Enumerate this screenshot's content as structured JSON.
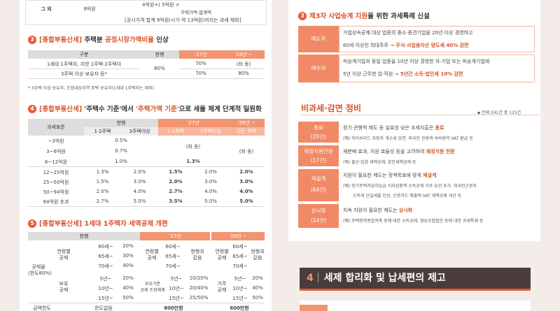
{
  "left": {
    "top_row": {
      "label": "그 외",
      "value": "9억원",
      "formula": "4억원+( 5억원 ×",
      "formula_sub": "주택가액 합계액",
      "note": "[공시가격 합계 9억원(시가 약 13억원)까지는 과세 제외]"
    },
    "s3": {
      "num": "3",
      "tag": "[종합부동산세]",
      "t1": "주택분 ",
      "t2": "공정시장가액비율",
      "t3": " 인상",
      "h": [
        "구분",
        "현행",
        "'27년",
        "'28년 ~"
      ],
      "r1": [
        "1세대 1주택자, 지방 1주택·2주택자",
        "70%",
        "(좌 동)"
      ],
      "r2": [
        "3주택 이상 보유자 등*",
        "70%",
        "80%"
      ],
      "cur": "60%",
      "note": "* 3주택 이상 보유자, 조정대상지역 주택 보유자(1세대 1주택자는 제외)"
    },
    "s4": {
      "num": "4",
      "tag": "[종합부동산세]",
      "t1": "'주택수 기준'",
      "t2": "에서 ",
      "t3": "'주택가액 기준'",
      "t4": "으로 세율 체계 단계적 일원화",
      "h_base": "과세표준",
      "h_cur": "현행",
      "h27": "'27년",
      "h28": "'28년 ~",
      "sub": [
        "1·2주택",
        "3주택이상",
        "1·2주택",
        "3주택이상",
        "모든 주택"
      ],
      "rows": [
        {
          "b": "~3억원",
          "c": "0.5%"
        },
        {
          "b": "3~6억원",
          "c": "0.7%"
        },
        {
          "b": "6~12억원",
          "c": "1.0%",
          "y": "1.3%"
        },
        {
          "b": "12~25억원",
          "c1": "1.3%",
          "c2": "2.0%",
          "y1": "1.5%",
          "y2": "2.0%",
          "z": "2.0%"
        },
        {
          "b": "25~50억원",
          "c1": "1.5%",
          "c2": "3.0%",
          "y1": "2.0%",
          "y2": "3.0%",
          "z": "3.0%"
        },
        {
          "b": "50~94억원",
          "c1": "2.0%",
          "c2": "4.0%",
          "y1": "2.7%",
          "y2": "4.0%",
          "z": "4.0%"
        },
        {
          "b": "94억원 초과",
          "c1": "2.7%",
          "c2": "5.0%",
          "y1": "3.5%",
          "y2": "5.0%",
          "z": "5.0%"
        }
      ],
      "same": "(좌 동)"
    },
    "s5": {
      "num": "5",
      "tag": "[종합부동산세]",
      "t1": "1세대 1주택자 세액공제 개편",
      "h": [
        "현행",
        "'27년",
        "'28년 ~"
      ],
      "rate_label": "공제율\n(한도80%)",
      "age": "연령별\n공제",
      "hold": "보유\n공제",
      "age_rows": [
        [
          "60세~",
          "20%"
        ],
        [
          "65세~",
          "30%"
        ],
        [
          "70세~",
          "40%"
        ]
      ],
      "hold_rows": [
        [
          "5년~",
          "20%"
        ],
        [
          "10년~",
          "40%"
        ],
        [
          "15년~",
          "50%"
        ]
      ],
      "c27a": "연령별\n공제",
      "c27b": "현행과\n같음",
      "c27age": [
        "60세~",
        "65세~",
        "70세~"
      ],
      "c27hold": "보유기준\n공제 조정체계",
      "c27h2": [
        "5년~",
        "10년~",
        "15년~"
      ],
      "c27h3": [
        "10/20%",
        "20/40%",
        "25/50%"
      ],
      "c28a": "연령별\n공제",
      "c28b": "현행과\n같음",
      "c28age": [
        "60세~",
        "65세~",
        "70세~"
      ],
      "c28hold": "거주\n공제",
      "c28h2": [
        "5년~",
        "10년~",
        "15년~"
      ],
      "c28h3": [
        "20%",
        "40%",
        "50%"
      ],
      "limit_label": "금액한도",
      "limit": [
        "한도없음",
        "800만원",
        "600만원"
      ]
    }
  },
  "right": {
    "s3": {
      "num": "3",
      "t1": "제3자 사업승계 지원",
      "t2": "을 위한 과세특례 신설",
      "seller": "매도자",
      "s1": "가업상속공제 대상 업종의 중소·중견기업을 20년 이상 경영하고",
      "s2a": "60세 이상인 최대주주 ",
      "s2b": "→ 주식·사업용자산 양도세 40% 감면",
      "buyer": "매수자",
      "b1": "피승계기업과 동일 업종을 10년 이상 경영한 자·기업 또는 피승계기업에",
      "b2a": "5년 이상 근무한 임·직원 ",
      "b2b": "→ 5년간 소득·법인세 10% 감면"
    },
    "sx": {
      "title": "비과세·감면 정비",
      "total": "▪ 전체 241건 중 115건",
      "items": [
        {
          "k": "종료",
          "n": "(20건)",
          "d1a": "장기·관행적 제도 등 실효성 낮은 조세지출은 ",
          "d1b": "종료",
          "d2": "(예) 하이브리드 자동차 개소세 감면, 외국인 관광객 숙박용역 VAT 환급 등"
        },
        {
          "k": "재정지원전환",
          "n": "(17건)",
          "d1a": "재분배 효과, 지원 효율성 등을 고려하여 ",
          "d1b": "재정지원 전환",
          "d2": "(예) 출산·입양 세액공제, 혼인세액공제 등"
        },
        {
          "k": "재설계",
          "n": "(64건)",
          "d1a": "지원이 필요한 제도는 정책목표에 맞게 ",
          "d1b": "재설계",
          "d2": "(예) 장기주택저당차입금 이자상환액 소득공제 거주 요건 추가, 외국인근로자",
          "d3": "소득세 단일세율 인상, 신용카드 매출액 VAT 세액공제 개선 등"
        },
        {
          "k": "상시화",
          "n": "(14건)",
          "d1a": "지속 지원이 필요한 제도는 ",
          "d1b": "상시화",
          "d2": "(예) 주택청약종합저축 등에 대한 소득공제, 영농조합법인 등에 대한 과세특례 등"
        }
      ]
    }
  },
  "banner": {
    "num": "4",
    "text": "세제 합리화 및 납세편의 제고"
  }
}
